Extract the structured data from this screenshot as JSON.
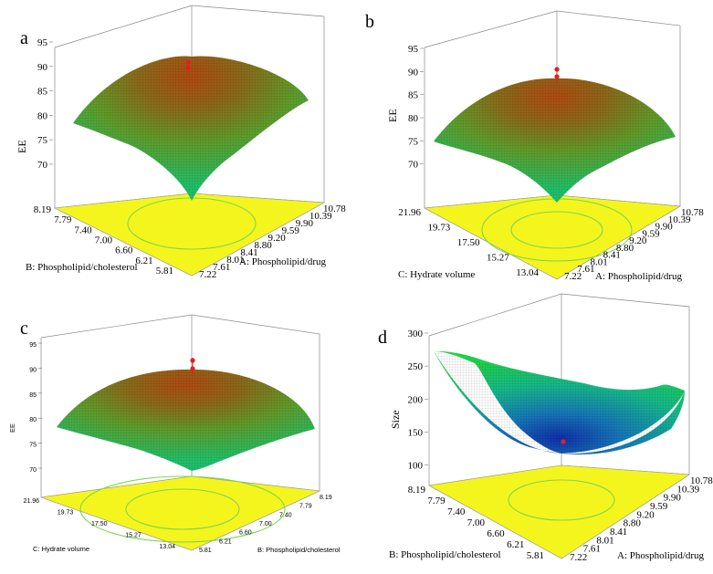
{
  "chart_data": [
    {
      "panel": "a",
      "type": "surface3d",
      "z_label": "EE",
      "z_ticks": [
        "95",
        "90",
        "85",
        "80",
        "75",
        "70"
      ],
      "z_range": [
        67,
        95
      ],
      "x_label": "A: Phospholipid/drug",
      "x_ticks": [
        "7.22",
        "7.61",
        "8.01",
        "8.41",
        "8.80",
        "9.20",
        "9.59",
        "9.90",
        "10.39",
        "10.78"
      ],
      "y_label": "B: Phospholipid/cholesterol",
      "y_ticks": [
        "8.19",
        "7.79",
        "7.40",
        "7.00",
        "6.60",
        "6.21",
        "5.81"
      ],
      "optimum_z": 90,
      "colormap": "green-orange",
      "annotation_marker_color": "#e02020"
    },
    {
      "panel": "b",
      "type": "surface3d",
      "z_label": "EE",
      "z_ticks": [
        "95",
        "90",
        "85",
        "80",
        "75",
        "70"
      ],
      "z_range": [
        66,
        95
      ],
      "x_label": "A: Phospholipid/drug",
      "x_ticks": [
        "7.22",
        "7.61",
        "8.01",
        "8.41",
        "8.80",
        "9.20",
        "9.59",
        "9.90",
        "10.39",
        "10.78"
      ],
      "y_label": "C: Hydrate volume",
      "y_ticks": [
        "21.96",
        "19.73",
        "17.50",
        "15.27",
        "13.04"
      ],
      "optimum_z": 90,
      "colormap": "green-orange",
      "annotation_marker_color": "#e02020"
    },
    {
      "panel": "c",
      "type": "surface3d",
      "z_label": "EE",
      "z_ticks": [
        "95",
        "90",
        "85",
        "80",
        "75",
        "70"
      ],
      "z_range": [
        68,
        95
      ],
      "x_label": "B: Phospholipid/cholesterol",
      "x_ticks": [
        "5.81",
        "6.21",
        "6.60",
        "7.00",
        "7.40",
        "7.79",
        "8.19"
      ],
      "y_label": "C: Hydrate volume",
      "y_ticks": [
        "21.96",
        "19.73",
        "17.50",
        "15.27",
        "13.04"
      ],
      "optimum_z": 89,
      "colormap": "green-orange",
      "annotation_marker_color": "#e02020"
    },
    {
      "panel": "d",
      "type": "surface3d",
      "z_label": "Size",
      "z_ticks": [
        "300",
        "250",
        "200",
        "150",
        "100"
      ],
      "z_range": [
        80,
        300
      ],
      "x_label": "A: Phospholipid/drug",
      "x_ticks": [
        "7.22",
        "7.61",
        "8.01",
        "8.41",
        "8.80",
        "9.20",
        "9.59",
        "9.90",
        "10.39",
        "10.78"
      ],
      "y_label": "B: Phospholipid/cholesterol",
      "y_ticks": [
        "8.19",
        "7.79",
        "7.40",
        "7.00",
        "6.60",
        "6.21",
        "5.81"
      ],
      "optimum_z": 108,
      "colormap": "blue-green",
      "annotation_marker_color": "#e02020"
    }
  ]
}
